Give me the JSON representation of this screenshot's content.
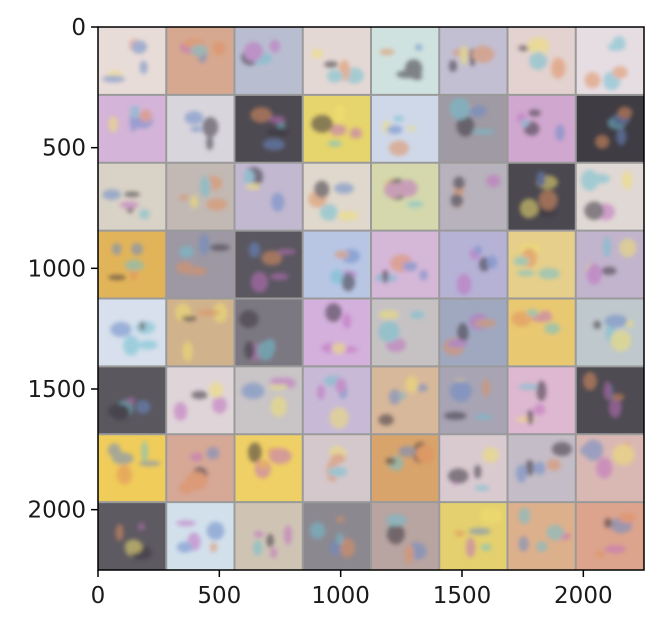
{
  "chart_data": {
    "type": "image",
    "x_range": [
      0,
      2250
    ],
    "y_range": [
      0,
      2250
    ],
    "y_inverted": true,
    "x_ticks": [
      0,
      500,
      1000,
      1500,
      2000
    ],
    "y_ticks": [
      0,
      500,
      1000,
      1500,
      2000
    ],
    "x_tick_labels": [
      "0",
      "500",
      "1000",
      "1500",
      "2000"
    ],
    "y_tick_labels": [
      "0",
      "500",
      "1000",
      "1500",
      "2000"
    ],
    "grid": {
      "rows": 8,
      "cols": 8,
      "separator_color": "#9a9a9a"
    },
    "tiles": [
      [
        "#e8dcd8",
        "#d6a890",
        "#b9bdd0",
        "#e4d8d4",
        "#cfe2df",
        "#c2bfd2",
        "#e3d2cf",
        "#e6dde2"
      ],
      [
        "#d4b4d8",
        "#d9d5dc",
        "#4e4a52",
        "#e6d46c",
        "#cfd8e8",
        "#9f9aa4",
        "#cfa7cf",
        "#3f3c43"
      ],
      [
        "#d9d2c6",
        "#c2b9b4",
        "#c2b8d0",
        "#e0d8cd",
        "#d4d8ac",
        "#b7b2bb",
        "#4b4850",
        "#e0d8d4"
      ],
      [
        "#e2b45a",
        "#9d98a3",
        "#5a5760",
        "#b8c6e4",
        "#d5b7d8",
        "#b5b2d6",
        "#e6cf8a",
        "#c2b4cc"
      ],
      [
        "#d7e0ec",
        "#d0b28c",
        "#7c7882",
        "#d4b0dc",
        "#c6c2c4",
        "#a0a8c0",
        "#e9c872",
        "#bfc8cc"
      ],
      [
        "#5a575e",
        "#dfd4d8",
        "#c9c4c6",
        "#c8bad6",
        "#d8b89a",
        "#a8a4b4",
        "#ddb8d0",
        "#4e4b52"
      ],
      [
        "#f0cc5a",
        "#d6a896",
        "#efd066",
        "#d4c8cc",
        "#d8a46c",
        "#d9cad0",
        "#c4bcc6",
        "#d9b8b4"
      ],
      [
        "#5e5a62",
        "#d2e0ec",
        "#cfc4b4",
        "#8c8890",
        "#b8a4a0",
        "#e4d06e",
        "#ddb08c",
        "#dca48c"
      ]
    ]
  }
}
